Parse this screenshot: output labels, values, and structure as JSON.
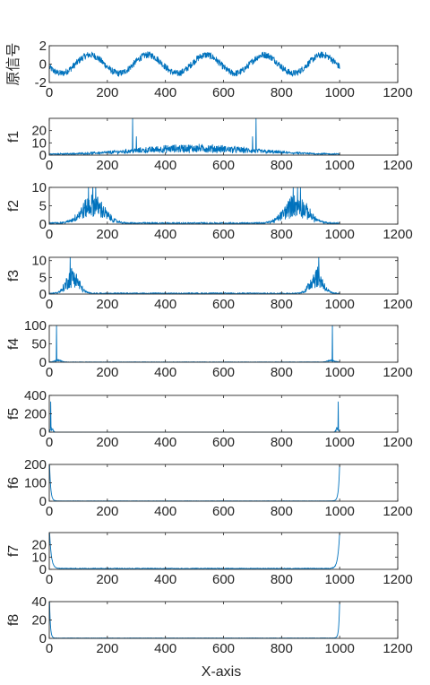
{
  "figure": {
    "xlabel": "X-axis"
  },
  "chart_data": [
    {
      "type": "line",
      "ylabel": "原信号",
      "xlim": [
        0,
        1200
      ],
      "xticks": [
        0,
        200,
        400,
        600,
        800,
        1000,
        1200
      ],
      "ylim": [
        -2,
        2
      ],
      "yticks": [
        -2,
        0,
        2
      ],
      "color": "#0072BD",
      "data": {
        "kind": "sine",
        "n": 1000,
        "amplitude": 1.0,
        "period": 200,
        "phase_peak_x": 140,
        "noise": 0.35
      }
    },
    {
      "type": "line",
      "ylabel": "f1",
      "xlim": [
        0,
        1200
      ],
      "xticks": [
        0,
        200,
        400,
        600,
        800,
        1000,
        1200
      ],
      "ylim": [
        0,
        30
      ],
      "yticks": [
        0,
        10,
        20
      ],
      "color": "#0072BD",
      "data": {
        "kind": "bands",
        "n": 1000,
        "noise": 1.2,
        "bands": [
          {
            "center": 500,
            "width": 280,
            "height": 7
          }
        ],
        "spikes": [
          {
            "x": 287,
            "y": 30
          },
          {
            "x": 712,
            "y": 30
          },
          {
            "x": 300,
            "y": 15
          },
          {
            "x": 700,
            "y": 15
          }
        ]
      }
    },
    {
      "type": "line",
      "ylabel": "f2",
      "xlim": [
        0,
        1200
      ],
      "xticks": [
        0,
        200,
        400,
        600,
        800,
        1000,
        1200
      ],
      "ylim": [
        0,
        10
      ],
      "yticks": [
        0,
        5,
        10
      ],
      "color": "#0072BD",
      "data": {
        "kind": "bands",
        "n": 1000,
        "noise": 0.5,
        "bands": [
          {
            "center": 150,
            "width": 55,
            "height": 7
          },
          {
            "center": 850,
            "width": 55,
            "height": 7
          }
        ],
        "spikes": [
          {
            "x": 135,
            "y": 10
          },
          {
            "x": 150,
            "y": 10
          },
          {
            "x": 160,
            "y": 10
          },
          {
            "x": 840,
            "y": 10
          },
          {
            "x": 855,
            "y": 10
          },
          {
            "x": 865,
            "y": 10
          }
        ]
      }
    },
    {
      "type": "line",
      "ylabel": "f3",
      "xlim": [
        0,
        1200
      ],
      "xticks": [
        0,
        200,
        400,
        600,
        800,
        1000,
        1200
      ],
      "ylim": [
        0,
        11
      ],
      "yticks": [
        0,
        5,
        10
      ],
      "color": "#0072BD",
      "data": {
        "kind": "bands",
        "n": 1000,
        "noise": 0.4,
        "bands": [
          {
            "center": 80,
            "width": 30,
            "height": 7
          },
          {
            "center": 920,
            "width": 30,
            "height": 7
          }
        ],
        "spikes": [
          {
            "x": 72,
            "y": 11
          },
          {
            "x": 928,
            "y": 11
          }
        ]
      }
    },
    {
      "type": "line",
      "ylabel": "f4",
      "xlim": [
        0,
        1200
      ],
      "xticks": [
        0,
        200,
        400,
        600,
        800,
        1000,
        1200
      ],
      "ylim": [
        0,
        100
      ],
      "yticks": [
        0,
        50,
        100
      ],
      "color": "#0072BD",
      "data": {
        "kind": "bands",
        "n": 1000,
        "noise": 1.0,
        "bands": [
          {
            "center": 30,
            "width": 16,
            "height": 6
          },
          {
            "center": 970,
            "width": 16,
            "height": 6
          }
        ],
        "spikes": [
          {
            "x": 25,
            "y": 100
          },
          {
            "x": 975,
            "y": 100
          }
        ]
      }
    },
    {
      "type": "line",
      "ylabel": "f5",
      "xlim": [
        0,
        1200
      ],
      "xticks": [
        0,
        200,
        400,
        600,
        800,
        1000,
        1200
      ],
      "ylim": [
        0,
        400
      ],
      "yticks": [
        0,
        200,
        400
      ],
      "color": "#0072BD",
      "data": {
        "kind": "bands",
        "n": 1000,
        "noise": 1.0,
        "bands": [
          {
            "center": 8,
            "width": 6,
            "height": 60
          },
          {
            "center": 992,
            "width": 6,
            "height": 60
          }
        ],
        "spikes": [
          {
            "x": 5,
            "y": 330
          },
          {
            "x": 995,
            "y": 330
          }
        ]
      }
    },
    {
      "type": "line",
      "ylabel": "f6",
      "xlim": [
        0,
        1200
      ],
      "xticks": [
        0,
        200,
        400,
        600,
        800,
        1000,
        1200
      ],
      "ylim": [
        0,
        200
      ],
      "yticks": [
        0,
        100,
        200
      ],
      "color": "#0072BD",
      "data": {
        "kind": "edge",
        "n": 1000,
        "peak": 200,
        "decay": 4,
        "base": 2
      }
    },
    {
      "type": "line",
      "ylabel": "f7",
      "xlim": [
        0,
        1200
      ],
      "xticks": [
        0,
        200,
        400,
        600,
        800,
        1000,
        1200
      ],
      "ylim": [
        0,
        30
      ],
      "yticks": [
        0,
        10,
        20
      ],
      "color": "#0072BD",
      "data": {
        "kind": "edge",
        "n": 1000,
        "peak": 30,
        "decay": 6,
        "base": 1
      }
    },
    {
      "type": "line",
      "ylabel": "f8",
      "xlim": [
        0,
        1200
      ],
      "xticks": [
        0,
        200,
        400,
        600,
        800,
        1000,
        1200
      ],
      "ylim": [
        0,
        40
      ],
      "yticks": [
        0,
        20,
        40
      ],
      "color": "#0072BD",
      "data": {
        "kind": "edge",
        "n": 1000,
        "peak": 40,
        "decay": 3,
        "base": 0.5
      }
    }
  ]
}
